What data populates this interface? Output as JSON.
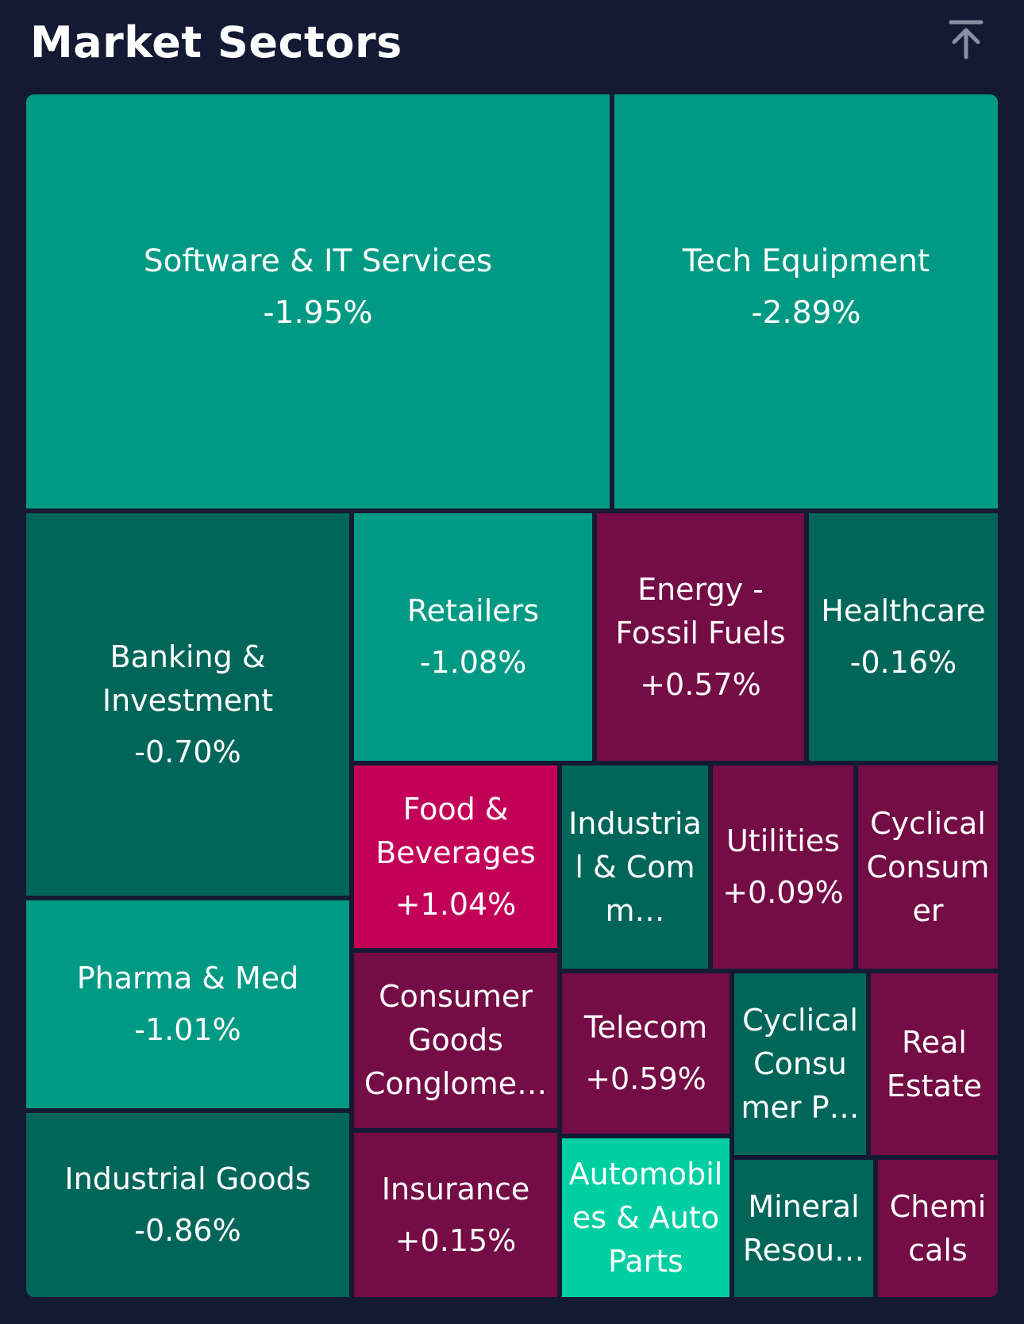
{
  "header": {
    "title": "Market Sectors"
  },
  "icons": {
    "scroll_top": "arrow-up-to-line-icon"
  },
  "colors": {
    "background": "#141a33",
    "down_strong": "#009a84",
    "down_mild": "#006659",
    "down_bright": "#00cfa3",
    "up_mild": "#740c45",
    "up_strong": "#c20058"
  },
  "sectors": [
    {
      "name": "Software & IT Services",
      "change": "-1.95%"
    },
    {
      "name": "Tech Equipment",
      "change": "-2.89%"
    },
    {
      "name": "Banking & Investment",
      "change": "-0.70%"
    },
    {
      "name": "Retailers",
      "change": "-1.08%"
    },
    {
      "name": "Energy - Fossil Fuels",
      "change": "+0.57%"
    },
    {
      "name": "Healthcare",
      "change": "-0.16%"
    },
    {
      "name": "Food & Beverages",
      "change": "+1.04%"
    },
    {
      "name": "Industrial & Comm…",
      "change": ""
    },
    {
      "name": "Utilities",
      "change": "+0.09%"
    },
    {
      "name": "Cyclical Consumer",
      "change": ""
    },
    {
      "name": "Pharma & Med",
      "change": "-1.01%"
    },
    {
      "name": "Consumer Goods Conglome…",
      "change": ""
    },
    {
      "name": "Telecom",
      "change": "+0.59%"
    },
    {
      "name": "Cyclical Consumer P…",
      "change": ""
    },
    {
      "name": "Real Estate",
      "change": ""
    },
    {
      "name": "Industrial Goods",
      "change": "-0.86%"
    },
    {
      "name": "Insurance",
      "change": "+0.15%"
    },
    {
      "name": "Automobiles & Auto Parts",
      "change": ""
    },
    {
      "name": "Mineral Resou…",
      "change": ""
    },
    {
      "name": "Chemicals",
      "change": ""
    }
  ]
}
